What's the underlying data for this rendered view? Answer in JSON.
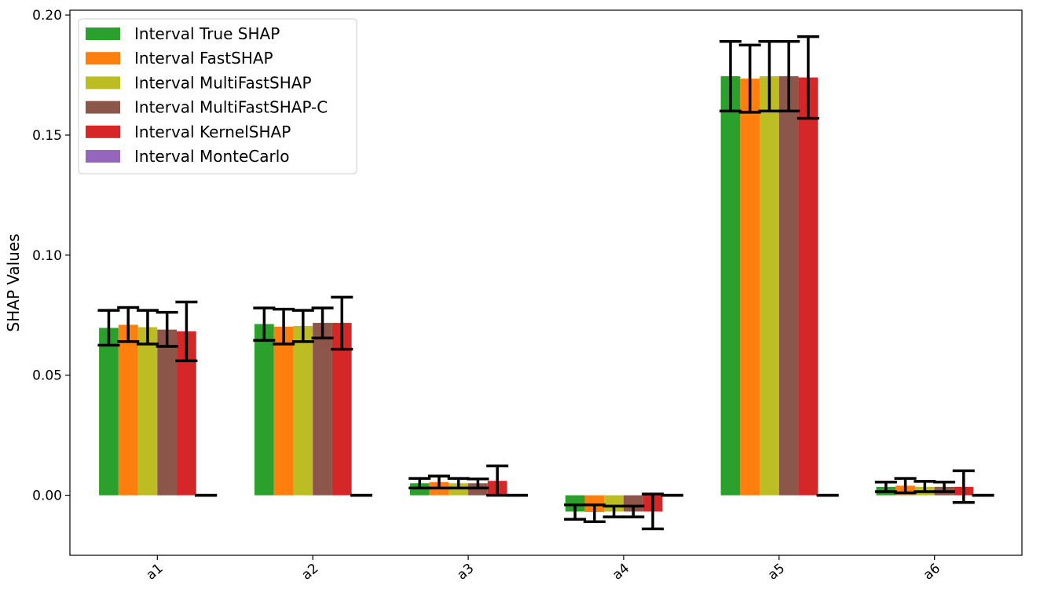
{
  "chart_data": {
    "type": "bar",
    "ylabel": "SHAP Values",
    "xlabel": "",
    "ylim": [
      -0.025,
      0.202
    ],
    "yticks": [
      0.0,
      0.05,
      0.1,
      0.15,
      0.2
    ],
    "ytick_labels": [
      "0.00",
      "0.05",
      "0.10",
      "0.15",
      "0.20"
    ],
    "categories": [
      "a1",
      "a2",
      "a3",
      "a4",
      "a5",
      "a6"
    ],
    "legend_position": "top-left",
    "grid": false,
    "error_bars": true,
    "series": [
      {
        "name": "Interval True SHAP",
        "color": "#2ca02c",
        "values": [
          0.0697,
          0.0713,
          0.005,
          -0.0068,
          0.1745,
          0.0035
        ],
        "err_low": [
          0.0625,
          0.0645,
          0.003,
          -0.01,
          0.16,
          0.0015
        ],
        "err_high": [
          0.077,
          0.078,
          0.007,
          -0.004,
          0.189,
          0.0055
        ]
      },
      {
        "name": "Interval FastSHAP",
        "color": "#ff7f0e",
        "values": [
          0.071,
          0.0702,
          0.0055,
          -0.007,
          0.1735,
          0.004
        ],
        "err_low": [
          0.064,
          0.063,
          0.003,
          -0.011,
          0.1595,
          0.001
        ],
        "err_high": [
          0.0782,
          0.0775,
          0.008,
          -0.004,
          0.1875,
          0.007
        ]
      },
      {
        "name": "Interval MultiFastSHAP",
        "color": "#bcbd22",
        "values": [
          0.07,
          0.0705,
          0.005,
          -0.0068,
          0.1745,
          0.0035
        ],
        "err_low": [
          0.063,
          0.064,
          0.003,
          -0.009,
          0.16,
          0.0015
        ],
        "err_high": [
          0.077,
          0.077,
          0.007,
          -0.0045,
          0.189,
          0.0058
        ]
      },
      {
        "name": "Interval MultiFastSHAP-C",
        "color": "#8c564b",
        "values": [
          0.069,
          0.0718,
          0.005,
          -0.0068,
          0.1745,
          0.0035
        ],
        "err_low": [
          0.062,
          0.0655,
          0.003,
          -0.009,
          0.16,
          0.0015
        ],
        "err_high": [
          0.0762,
          0.078,
          0.0068,
          -0.0045,
          0.189,
          0.0055
        ]
      },
      {
        "name": "Interval KernelSHAP",
        "color": "#d62728",
        "values": [
          0.0683,
          0.0718,
          0.006,
          -0.0068,
          0.174,
          0.0035
        ],
        "err_low": [
          0.056,
          0.0608,
          0.0,
          -0.014,
          0.157,
          -0.003
        ],
        "err_high": [
          0.0805,
          0.0825,
          0.0122,
          0.0005,
          0.191,
          0.0102
        ]
      },
      {
        "name": "Interval MonteCarlo",
        "color": "#9467bd",
        "values": [
          0,
          0,
          0,
          0,
          0,
          0
        ],
        "err_low": [
          0,
          0,
          0,
          0,
          0,
          0
        ],
        "err_high": [
          0,
          0,
          0,
          0,
          0,
          0
        ]
      }
    ]
  }
}
